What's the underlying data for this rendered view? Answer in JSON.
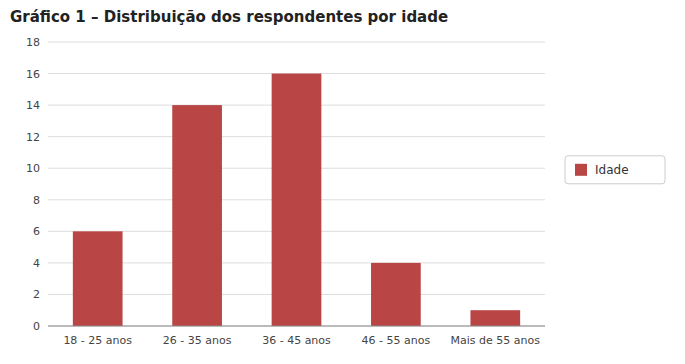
{
  "chart_data": {
    "type": "bar",
    "title": "Gráfico 1 – Distribuição dos respondentes por idade",
    "categories": [
      "18 - 25 anos",
      "26 - 35 anos",
      "36 - 45 anos",
      "46 - 55 anos",
      "Mais de 55 anos"
    ],
    "series": [
      {
        "name": "Idade",
        "color": "#b94545",
        "values": [
          6,
          14,
          16,
          4,
          1
        ]
      }
    ],
    "ylim": [
      0,
      18
    ],
    "yticks": [
      0,
      2,
      4,
      6,
      8,
      10,
      12,
      14,
      16,
      18
    ],
    "grid": true,
    "legend": "right"
  }
}
